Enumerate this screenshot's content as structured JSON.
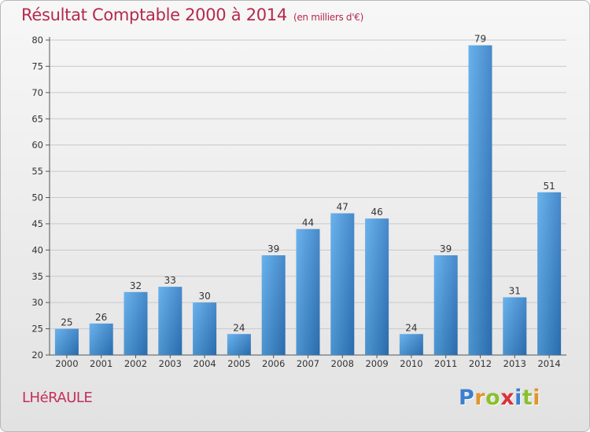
{
  "chart_data": {
    "type": "bar",
    "title": "Résultat Comptable 2000 à 2014",
    "subtitle": "(en milliers d'€)",
    "categories": [
      "2000",
      "2001",
      "2002",
      "2003",
      "2004",
      "2005",
      "2006",
      "2007",
      "2008",
      "2009",
      "2010",
      "2011",
      "2012",
      "2013",
      "2014"
    ],
    "values": [
      25,
      26,
      32,
      33,
      30,
      24,
      39,
      44,
      47,
      46,
      24,
      39,
      79,
      31,
      51
    ],
    "ylim": [
      20,
      80
    ],
    "yticks": [
      20,
      25,
      30,
      35,
      40,
      45,
      50,
      55,
      60,
      65,
      70,
      75,
      80
    ],
    "xlabel": "",
    "ylabel": "",
    "grid": "horizontal",
    "legend": "none",
    "bar_color": "#3f8ed8"
  },
  "footer": {
    "commune": "LHéRAULE"
  },
  "logo": {
    "letters": [
      "P",
      "r",
      "o",
      "x",
      "i",
      "t",
      "i"
    ],
    "colors": [
      "#3a7fd0",
      "#e0962c",
      "#8bbf2f",
      "#d8323c",
      "#3a7fd0",
      "#8bbf2f",
      "#e0962c"
    ]
  }
}
